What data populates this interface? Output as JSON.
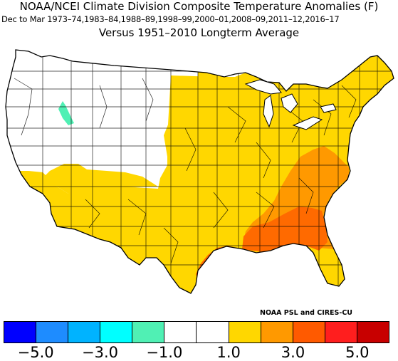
{
  "title_line1": "NOAA/NCEI Climate Division Composite Temperature Anomalies (F)",
  "title_line2": "Dec to Mar  1973–74,1983–84,1988–89,1998–99,2000–01,2008–09,2011–12,2016–17",
  "title_line3": "Versus 1951–2010 Longterm Average",
  "credit": "NOAA PSL and CIRES-CU",
  "legend": {
    "colors": [
      "#0000ff",
      "#1e8cff",
      "#00b3ff",
      "#00ffff",
      "#50f0b4",
      "#ffffff",
      "#ffffff",
      "#ffd700",
      "#ff9900",
      "#ff5a00",
      "#ff1e1e",
      "#c80000"
    ],
    "bounds": [
      -6.0,
      -5.0,
      -4.0,
      -3.0,
      -2.0,
      -1.0,
      0.0,
      1.0,
      2.0,
      3.0,
      4.0,
      5.0,
      6.0
    ],
    "tick_labels": [
      "−5.0",
      "−3.0",
      "−1.0",
      "1.0",
      "3.0",
      "5.0"
    ]
  },
  "map_colors": {
    "neutral": "#ffffff",
    "warm_1_to_2": "#ffd700",
    "warm_2_to_3": "#ff9900",
    "warm_3_to_4": "#ff6a00",
    "cool_minus_2_to_minus_1": "#50f0b4",
    "border": "#000000"
  },
  "map_regions": [
    {
      "name": "west-neutral",
      "value_range": "-1 to 1",
      "color_key": "neutral"
    },
    {
      "name": "southwest-and-central-warm",
      "value_range": "1 to 2",
      "color_key": "warm_1_to_2"
    },
    {
      "name": "southeast-warm",
      "value_range": "2 to 3",
      "color_key": "warm_2_to_3"
    },
    {
      "name": "gulf-coast-warm",
      "value_range": "3 to 4",
      "color_key": "warm_3_to_4"
    },
    {
      "name": "idaho-cool",
      "value_range": "-2 to -1",
      "color_key": "cool_minus_2_to_minus_1"
    }
  ]
}
